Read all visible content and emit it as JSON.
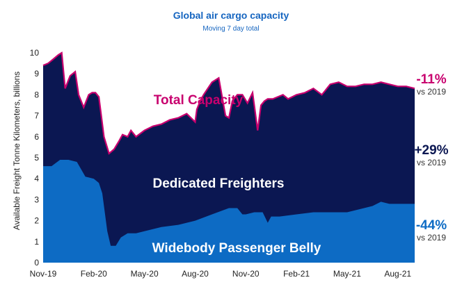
{
  "colors": {
    "total_line": "#c8006e",
    "freighter_area": "#0b1752",
    "belly_area": "#0d6bc4",
    "title": "#1565c0",
    "freighter_text": "#0b1752"
  },
  "chart_data": {
    "type": "area",
    "title": "Global air cargo capacity",
    "subtitle": "Moving 7 day total",
    "ylabel": "Available Freight Tonne Kilometers, billions",
    "xlabel": "",
    "ylim": [
      0,
      10
    ],
    "yticks": [
      "0",
      "1",
      "2",
      "3",
      "4",
      "5",
      "6",
      "7",
      "8",
      "9",
      "10"
    ],
    "xticks": [
      "Nov-19",
      "Feb-20",
      "May-20",
      "Aug-20",
      "Nov-20",
      "Feb-21",
      "May-21",
      "Aug-21"
    ],
    "x_index_range": [
      0,
      22
    ],
    "grid": false,
    "series": [
      {
        "name": "Total Capacity",
        "x": [
          0,
          0.3,
          0.6,
          0.9,
          1.1,
          1.3,
          1.6,
          1.9,
          2.1,
          2.4,
          2.7,
          2.9,
          3.1,
          3.3,
          3.6,
          3.9,
          4.2,
          4.5,
          4.7,
          5.0,
          5.2,
          5.5,
          6.0,
          6.5,
          7.0,
          7.5,
          8.0,
          8.5,
          9.0,
          9.1,
          9.3,
          9.5,
          10.0,
          10.4,
          10.8,
          11.0,
          11.2,
          11.5,
          11.8,
          12.1,
          12.4,
          12.7,
          12.9,
          13.1,
          13.3,
          13.6,
          13.9,
          14.2,
          14.5,
          15.0,
          15.5,
          16.0,
          16.5,
          16.7,
          17.0,
          17.5,
          18.0,
          18.5,
          19.0,
          19.5,
          20.0,
          20.5,
          21.0,
          21.5,
          22.0
        ],
        "values": [
          9.4,
          9.5,
          9.7,
          9.9,
          10.0,
          8.3,
          8.9,
          9.1,
          8.0,
          7.4,
          8.0,
          8.1,
          8.1,
          7.9,
          6.0,
          5.2,
          5.4,
          5.8,
          6.1,
          6.0,
          6.3,
          6.0,
          6.3,
          6.5,
          6.6,
          6.8,
          6.9,
          7.1,
          6.7,
          7.3,
          7.7,
          8.0,
          8.6,
          8.8,
          7.0,
          6.9,
          7.7,
          8.0,
          8.0,
          7.6,
          8.1,
          6.3,
          7.5,
          7.7,
          7.8,
          7.8,
          7.9,
          8.0,
          7.8,
          8.0,
          8.1,
          8.3,
          8.0,
          8.2,
          8.5,
          8.6,
          8.4,
          8.4,
          8.5,
          8.5,
          8.6,
          8.5,
          8.4,
          8.4,
          8.3
        ]
      },
      {
        "name": "Widebody Passenger Belly",
        "x": [
          0,
          0.5,
          1.0,
          1.5,
          2.0,
          2.5,
          3.0,
          3.3,
          3.5,
          3.8,
          4.0,
          4.3,
          4.6,
          5.0,
          5.5,
          6.0,
          7.0,
          8.0,
          9.0,
          10.0,
          11.0,
          11.5,
          11.8,
          12.0,
          12.5,
          13.0,
          13.3,
          13.5,
          14.0,
          15.0,
          16.0,
          17.0,
          18.0,
          19.0,
          19.5,
          20.0,
          20.5,
          21.0,
          21.5,
          22.0
        ],
        "values": [
          4.6,
          4.6,
          4.9,
          4.9,
          4.8,
          4.1,
          4.0,
          3.8,
          3.3,
          1.5,
          0.8,
          0.8,
          1.2,
          1.4,
          1.4,
          1.5,
          1.7,
          1.8,
          2.0,
          2.3,
          2.6,
          2.6,
          2.3,
          2.3,
          2.4,
          2.4,
          1.9,
          2.2,
          2.2,
          2.3,
          2.4,
          2.4,
          2.4,
          2.6,
          2.7,
          2.9,
          2.8,
          2.8,
          2.8,
          2.8
        ]
      }
    ],
    "annotations": [
      {
        "name": "Total Capacity",
        "change": "-11%",
        "note": "vs 2019"
      },
      {
        "name": "Dedicated Freighters",
        "change": "+29%",
        "note": "vs 2019"
      },
      {
        "name": "Widebody Passenger Belly",
        "change": "-44%",
        "note": "vs 2019"
      }
    ]
  }
}
